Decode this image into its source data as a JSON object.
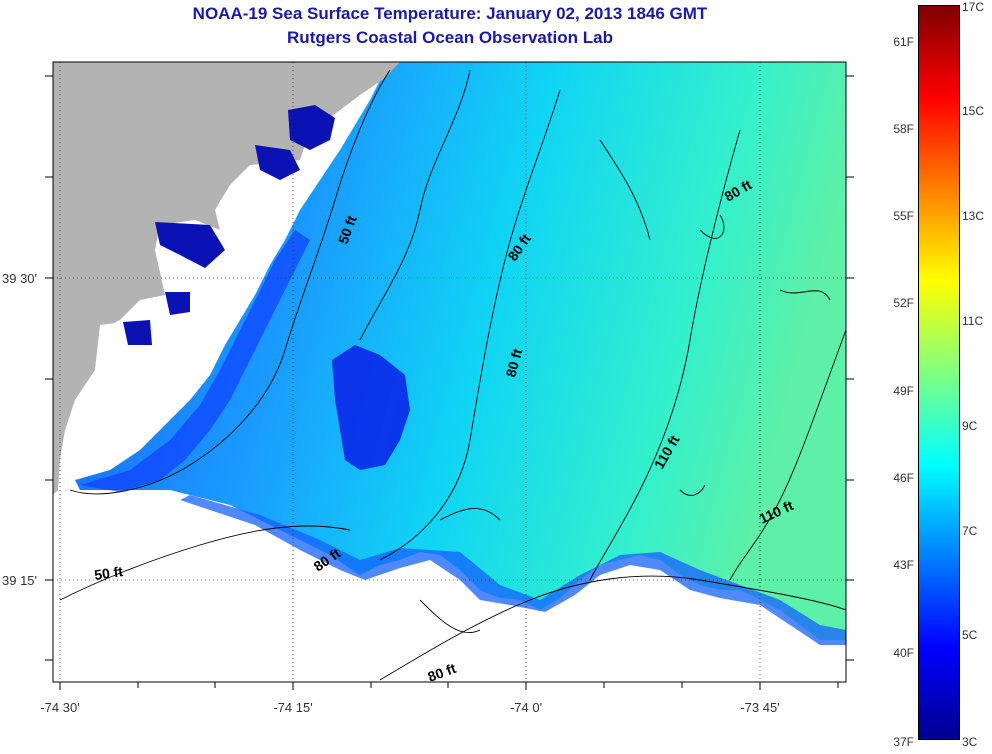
{
  "title": "NOAA-19 Sea Surface Temperature:  January 02, 2013 1846 GMT",
  "subtitle": "Rutgers Coastal Ocean Observation Lab",
  "axes": {
    "x_ticks": [
      "-74 30'",
      "-74 15'",
      "-74 0'",
      "-73 45'"
    ],
    "y_ticks": [
      "39 30'",
      "39 15'"
    ]
  },
  "contour_labels": [
    "50 ft",
    "80 ft",
    "80 ft",
    "80 ft",
    "110 ft",
    "110 ft",
    "50 ft",
    "80 ft",
    "80 ft"
  ],
  "colorbar": {
    "fahrenheit": [
      "61F",
      "58F",
      "55F",
      "52F",
      "49F",
      "46F",
      "43F",
      "40F",
      "37F"
    ],
    "celsius": [
      "17C",
      "15C",
      "13C",
      "11C",
      "9C",
      "7C",
      "5C",
      "3C"
    ],
    "range_c": [
      3,
      17
    ],
    "colors": [
      "#00008f",
      "#0000ff",
      "#0080ff",
      "#00ffff",
      "#80ff80",
      "#ffff00",
      "#ff8000",
      "#ff0000",
      "#800000"
    ]
  },
  "colors": {
    "land": "#b3b3b3",
    "title": "#1a1aa6"
  }
}
